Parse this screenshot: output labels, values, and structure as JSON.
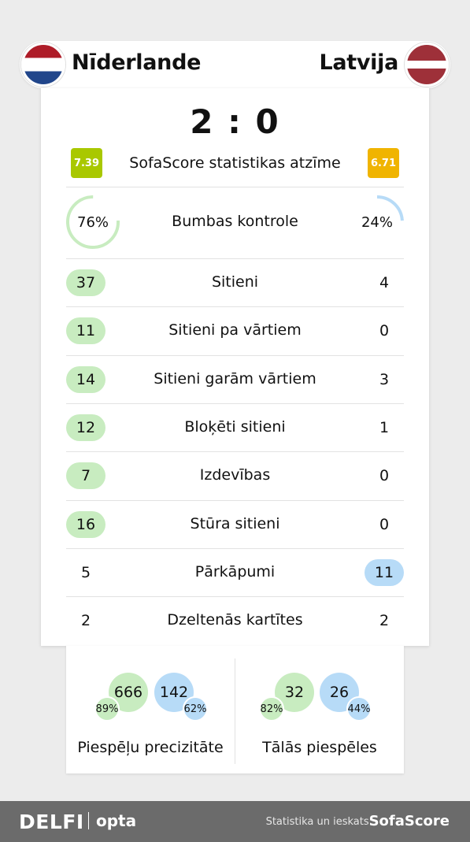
{
  "header": {
    "home_team": "Nīderlande",
    "away_team": "Latvija"
  },
  "score": "2 : 0",
  "rating": {
    "label": "SofaScore statistikas atzīme",
    "home": "7.39",
    "away": "6.71",
    "home_color": "#a9c800",
    "away_color": "#f0b400"
  },
  "possession": {
    "label": "Bumbas kontrole",
    "home": "76%",
    "away": "24%",
    "home_fraction": 0.76,
    "away_fraction": 0.24
  },
  "stats": [
    {
      "label": "Sitieni",
      "home": "37",
      "away": "4",
      "winner": "home"
    },
    {
      "label": "Sitieni pa vārtiem",
      "home": "11",
      "away": "0",
      "winner": "home"
    },
    {
      "label": "Sitieni garām vārtiem",
      "home": "14",
      "away": "3",
      "winner": "home"
    },
    {
      "label": "Bloķēti sitieni",
      "home": "12",
      "away": "1",
      "winner": "home"
    },
    {
      "label": "Izdevības",
      "home": "7",
      "away": "0",
      "winner": "home"
    },
    {
      "label": "Stūra sitieni",
      "home": "16",
      "away": "0",
      "winner": "home"
    },
    {
      "label": "Pārkāpumi",
      "home": "5",
      "away": "11",
      "winner": "away"
    },
    {
      "label": "Dzeltenās kartītes",
      "home": "2",
      "away": "2",
      "winner": "none"
    }
  ],
  "passes": {
    "accuracy": {
      "title": "Piespēļu precizitāte",
      "home_total": "666",
      "home_pct": "89%",
      "away_total": "142",
      "away_pct": "62%"
    },
    "long": {
      "title": "Tālās piespēles",
      "home_total": "32",
      "home_pct": "82%",
      "away_total": "26",
      "away_pct": "44%"
    }
  },
  "footer": {
    "brand": "DELFI",
    "partner": "opta",
    "credit": "Statistika un ieskats:",
    "provider": "SofaScore"
  },
  "colors": {
    "home_win": "#c8ecc0",
    "away_win": "#b7dbf7",
    "footer_bg": "#6b6b6b"
  }
}
